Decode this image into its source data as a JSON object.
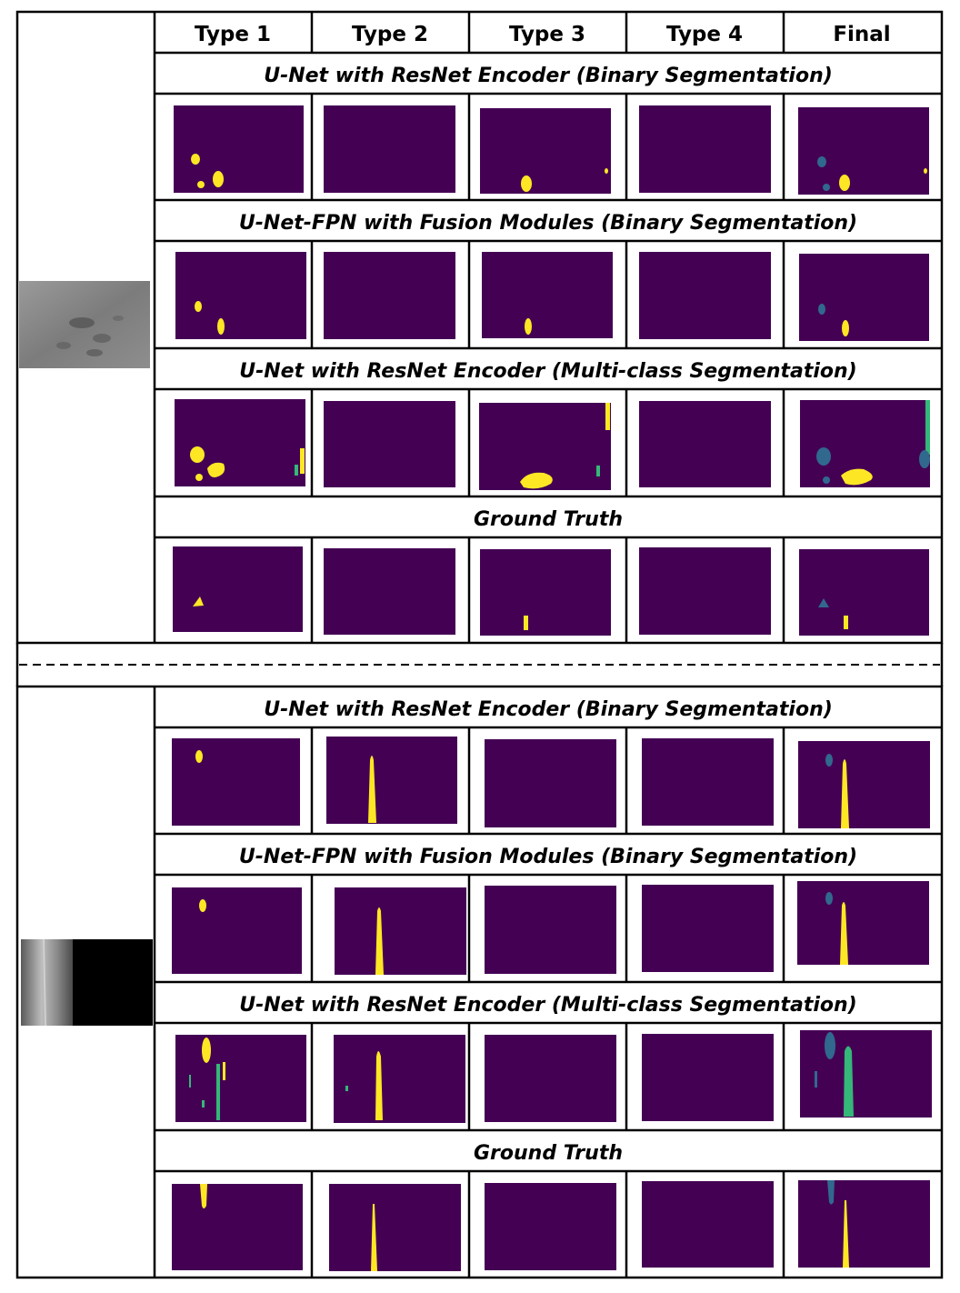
{
  "figure": {
    "columns": [
      "Type 1",
      "Type 2",
      "Type 3",
      "Type 4",
      "Final"
    ],
    "colors": {
      "background": "#440154",
      "defect_yellow": "#fde725",
      "defect_teal": "#31688e",
      "defect_green": "#35b779",
      "grid": "#000000"
    },
    "samples": [
      {
        "input_image": "grayscale-steel-surface-with-dark-speckles",
        "blocks": [
          {
            "title": "U-Net with ResNet Encoder (Binary Segmentation)"
          },
          {
            "title": "U-Net-FPN with Fusion Modules (Binary Segmentation)"
          },
          {
            "title": "U-Net with ResNet Encoder (Multi-class Segmentation)"
          },
          {
            "title": "Ground Truth"
          }
        ]
      },
      {
        "input_image": "grayscale-steel-surface-with-vertical-scratch-and-black-region",
        "blocks": [
          {
            "title": "U-Net with ResNet Encoder (Binary Segmentation)"
          },
          {
            "title": "U-Net-FPN with Fusion Modules (Binary Segmentation)"
          },
          {
            "title": "U-Net with ResNet Encoder (Multi-class Segmentation)"
          },
          {
            "title": "Ground Truth"
          }
        ]
      }
    ]
  }
}
